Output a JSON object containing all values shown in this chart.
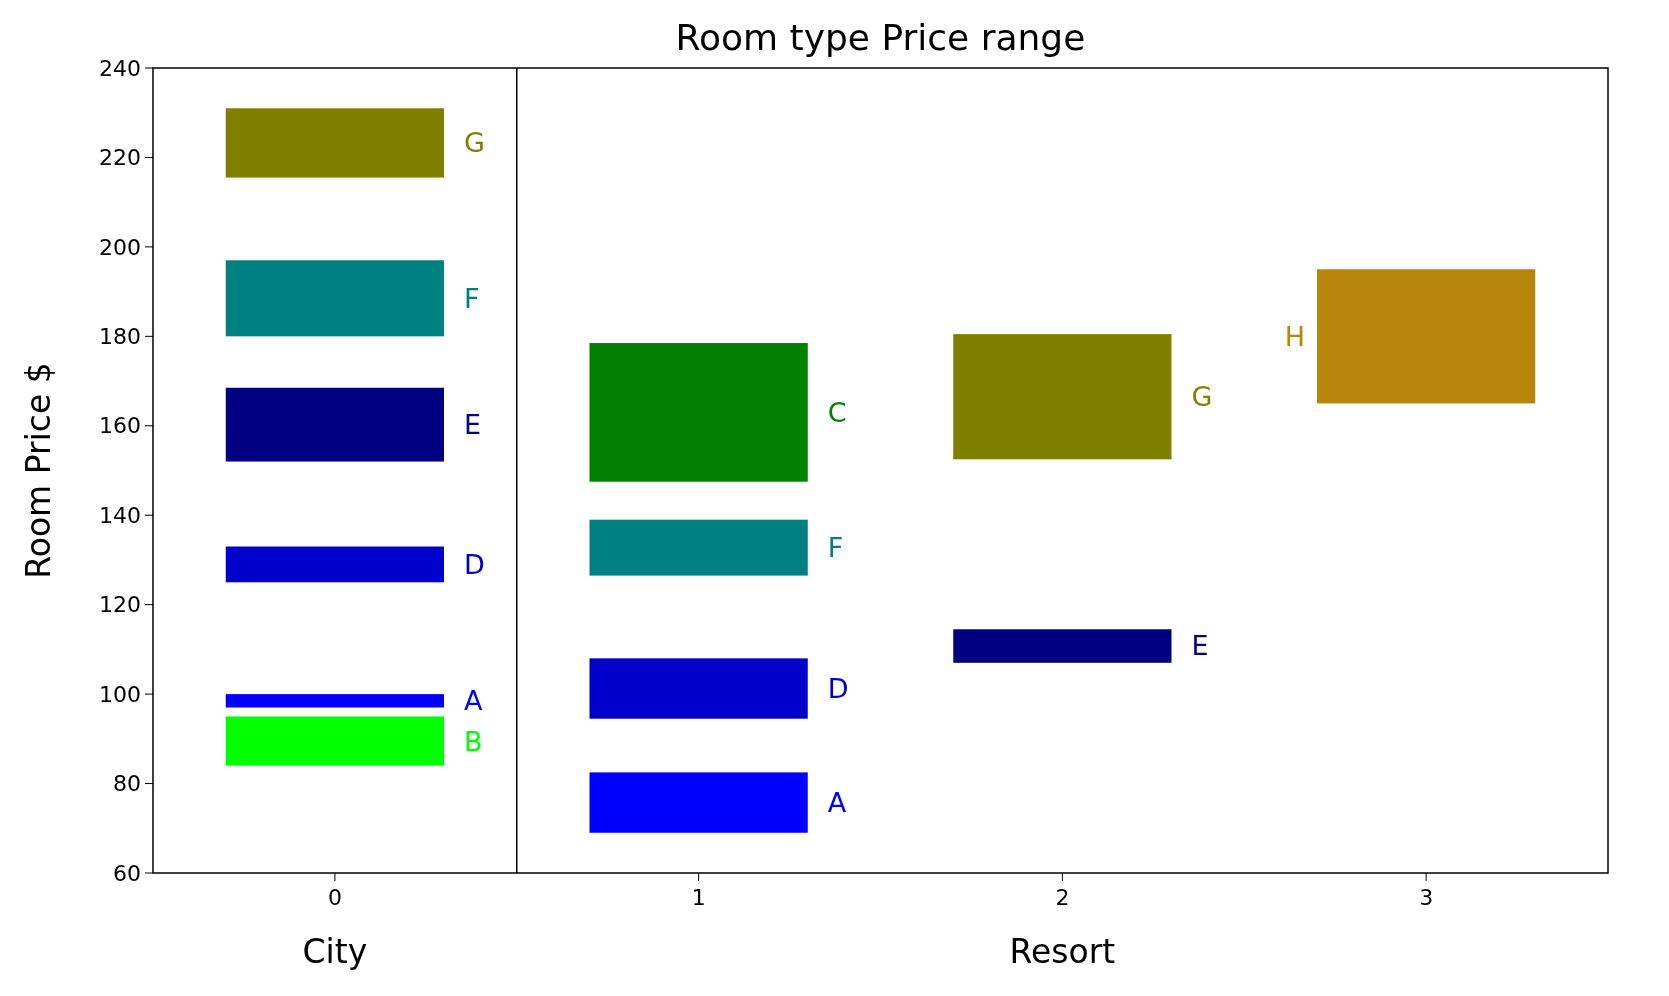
{
  "chart_data": {
    "type": "bar",
    "title": "Room type Price range",
    "ylabel": "Room Price $",
    "xlim": [
      -0.5,
      3.5
    ],
    "xticks": [
      0,
      1,
      2,
      3
    ],
    "ylim": [
      60,
      240
    ],
    "yticks": [
      60,
      80,
      100,
      120,
      140,
      160,
      180,
      200,
      220,
      240
    ],
    "grid": false,
    "ref_lines": [
      {
        "axis": "x",
        "value": 0.5,
        "color": "#000000"
      }
    ],
    "annotations": [
      "City",
      "Resort"
    ],
    "series": [
      {
        "name": "A",
        "color": "#0000ff",
        "x": [
          0,
          1
        ],
        "base": [
          97,
          69
        ],
        "values": [
          3,
          13.5
        ]
      },
      {
        "name": "B",
        "color": "#00ff00",
        "x": [
          0
        ],
        "base": [
          84
        ],
        "values": [
          11
        ]
      },
      {
        "name": "C",
        "color": "#008000",
        "x": [
          1
        ],
        "base": [
          147.5
        ],
        "values": [
          31
        ]
      },
      {
        "name": "D",
        "color": "#0000cd",
        "x": [
          0,
          1
        ],
        "base": [
          125,
          94.5
        ],
        "values": [
          8,
          13.5
        ]
      },
      {
        "name": "E",
        "color": "#000080",
        "x": [
          0,
          2
        ],
        "base": [
          152,
          107
        ],
        "values": [
          16.5,
          7.5
        ]
      },
      {
        "name": "F",
        "color": "#008080",
        "x": [
          0,
          1
        ],
        "base": [
          180,
          126.5
        ],
        "values": [
          17,
          12.5
        ]
      },
      {
        "name": "G",
        "color": "#808000",
        "x": [
          0,
          2
        ],
        "base": [
          215.5,
          152.5
        ],
        "values": [
          15.5,
          28
        ]
      },
      {
        "name": "H",
        "color": "#b8860b",
        "x": [
          3
        ],
        "base": [
          165
        ],
        "values": [
          30
        ]
      }
    ]
  }
}
